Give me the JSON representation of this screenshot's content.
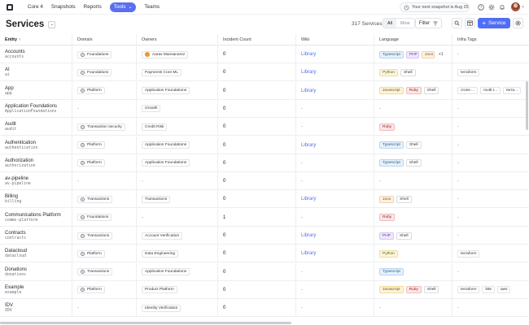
{
  "nav": {
    "items": [
      {
        "label": "Core 4",
        "active": false
      },
      {
        "label": "Snapshots",
        "active": false
      },
      {
        "label": "Reports",
        "active": false
      },
      {
        "label": "Tools",
        "active": true,
        "dropdown": true
      },
      {
        "label": "Teams",
        "active": false
      }
    ],
    "snapshot_text": "Your next snapshot is Aug 25"
  },
  "header": {
    "title": "Services",
    "count": "317 Services",
    "toggle": [
      "All",
      "Mine"
    ],
    "filter_label": "Filter",
    "new_service_label": "Service"
  },
  "table": {
    "columns": [
      "Entity",
      "Domain",
      "Owners",
      "Incident Count",
      "Wiki",
      "Language",
      "Infra Tags"
    ],
    "rows": [
      {
        "name": "Accounts",
        "slug": "accounts",
        "domain": "Foundations",
        "owner": "Aarav Mansanarez",
        "owner_is_person": true,
        "incidents": "0",
        "wiki": "Library",
        "languages": [
          "Typescript",
          "PHP",
          "Java"
        ],
        "lang_more": "+1",
        "tags": []
      },
      {
        "name": "AI",
        "slug": "ai",
        "domain": "Foundations",
        "owner": "Payments Core ML",
        "owner_is_person": false,
        "incidents": "0",
        "wiki": "Library",
        "languages": [
          "Python",
          "Shell"
        ],
        "lang_more": "",
        "tags": [
          "terraform"
        ]
      },
      {
        "name": "App",
        "slug": "app",
        "domain": "Platform",
        "owner": "Application Foundations",
        "owner_is_person": false,
        "incidents": "0",
        "wiki": "Library",
        "languages": [
          "Javascript",
          "Ruby",
          "Shell"
        ],
        "lang_more": "",
        "tags": [
          "cross-...",
          "multi-r...",
          "terra..."
        ]
      },
      {
        "name": "Application Foundations",
        "slug": "ApplicationFoundations",
        "domain": "",
        "owner": "Growth",
        "owner_is_person": false,
        "incidents": "0",
        "wiki": "",
        "languages": [],
        "lang_more": "",
        "tags": []
      },
      {
        "name": "Audit",
        "slug": "audit",
        "domain": "Transaction security",
        "owner": "Credit Risk",
        "owner_is_person": false,
        "incidents": "0",
        "wiki": "",
        "languages": [
          "Ruby"
        ],
        "lang_more": "",
        "tags": []
      },
      {
        "name": "Authentication",
        "slug": "authentication",
        "domain": "Platform",
        "owner": "Application Foundations",
        "owner_is_person": false,
        "incidents": "0",
        "wiki": "Library",
        "languages": [
          "Typescript",
          "Shell"
        ],
        "lang_more": "",
        "tags": []
      },
      {
        "name": "Authorization",
        "slug": "authorization",
        "domain": "Platform",
        "owner": "Application Foundations",
        "owner_is_person": false,
        "incidents": "0",
        "wiki": "",
        "languages": [
          "Typescript",
          "Shell"
        ],
        "lang_more": "",
        "tags": []
      },
      {
        "name": "av-pipeline",
        "slug": "av-pipeline",
        "domain": "",
        "owner": "",
        "owner_is_person": false,
        "incidents": "0",
        "wiki": "",
        "languages": [],
        "lang_more": "",
        "tags": []
      },
      {
        "name": "Billing",
        "slug": "billing",
        "domain": "Transactions",
        "owner": "Transactions",
        "owner_is_person": false,
        "incidents": "0",
        "wiki": "Library",
        "languages": [
          "Java",
          "Shell"
        ],
        "lang_more": "",
        "tags": []
      },
      {
        "name": "Communications Platform",
        "slug": "comms-platform",
        "domain": "Foundations",
        "owner": "",
        "owner_is_person": false,
        "incidents": "1",
        "wiki": "",
        "languages": [
          "Ruby"
        ],
        "lang_more": "",
        "tags": []
      },
      {
        "name": "Contracts",
        "slug": "contracts",
        "domain": "Transactions",
        "owner": "Account Verification",
        "owner_is_person": false,
        "incidents": "0",
        "wiki": "Library",
        "languages": [
          "PHP",
          "Shell"
        ],
        "lang_more": "",
        "tags": []
      },
      {
        "name": "Datacloud",
        "slug": "datacloud",
        "domain": "Platform",
        "owner": "Data Engineering",
        "owner_is_person": false,
        "incidents": "0",
        "wiki": "Library",
        "languages": [
          "Python"
        ],
        "lang_more": "",
        "tags": [
          "terraform"
        ]
      },
      {
        "name": "Donations",
        "slug": "donations",
        "domain": "Transactions",
        "owner": "Application Foundations",
        "owner_is_person": false,
        "incidents": "0",
        "wiki": "",
        "languages": [
          "Typescript"
        ],
        "lang_more": "",
        "tags": []
      },
      {
        "name": "Example",
        "slug": "example",
        "domain": "Platform",
        "owner": "Product Platform",
        "owner_is_person": false,
        "incidents": "0",
        "wiki": "",
        "languages": [
          "Javascript",
          "Ruby",
          "Shell"
        ],
        "lang_more": "",
        "tags": [
          "terraform",
          "k8s",
          "aws"
        ]
      },
      {
        "name": "IDV",
        "slug": "IDV",
        "domain": "",
        "owner": "Identity Verification",
        "owner_is_person": false,
        "incidents": "0",
        "wiki": "",
        "languages": [],
        "lang_more": "",
        "tags": []
      }
    ]
  },
  "language_colors": {
    "Typescript": {
      "bg": "#e6f1fb",
      "border": "#b9d5ee",
      "fg": "#2b5d8a"
    },
    "PHP": {
      "bg": "#efe8fb",
      "border": "#d5c6f0",
      "fg": "#5b3f96"
    },
    "Java": {
      "bg": "#fdf1e3",
      "border": "#f1d2ad",
      "fg": "#8a5a22"
    },
    "Python": {
      "bg": "#fbf6da",
      "border": "#ece0a2",
      "fg": "#6b5d16"
    },
    "Shell": {
      "bg": "#ffffff",
      "border": "#d9dce0",
      "fg": "#333333"
    },
    "Javascript": {
      "bg": "#fdf3d8",
      "border": "#f0dc9e",
      "fg": "#6e5a14"
    },
    "Ruby": {
      "bg": "#fde6e6",
      "border": "#f2bcbc",
      "fg": "#8a2a2a"
    }
  },
  "colors": {
    "accent": "#4f6ef7",
    "tools_active": "#5b6ff0"
  }
}
